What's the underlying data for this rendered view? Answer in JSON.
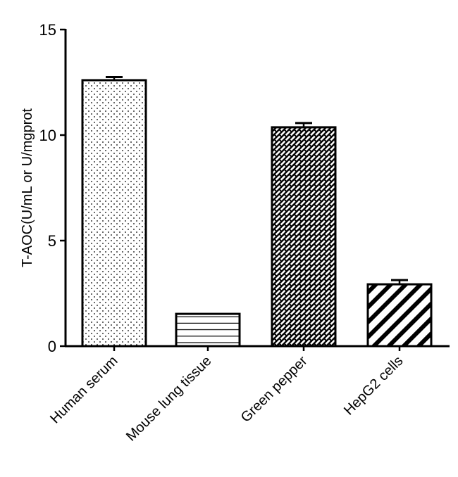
{
  "chart_data": {
    "type": "bar",
    "title": "",
    "xlabel": "",
    "ylabel": "T-AOC(U/mL or U/mgprot",
    "ylim": [
      0,
      15
    ],
    "yticks": [
      0,
      5,
      10,
      15
    ],
    "grid": false,
    "legend": null,
    "categories": [
      "Human serum",
      "Mouse lung tissue",
      "Green pepper",
      "HepG2 cells"
    ],
    "values": [
      12.6,
      1.53,
      10.37,
      2.93
    ],
    "error_bars": [
      0.15,
      0,
      0.2,
      0.2
    ],
    "patterns": [
      "dots",
      "horizontal-lines",
      "crosshatch-brick",
      "diagonal-stripes"
    ],
    "colors": {
      "bar_fill": "#ffffff",
      "bar_stroke": "#000000",
      "axis": "#000000"
    }
  }
}
